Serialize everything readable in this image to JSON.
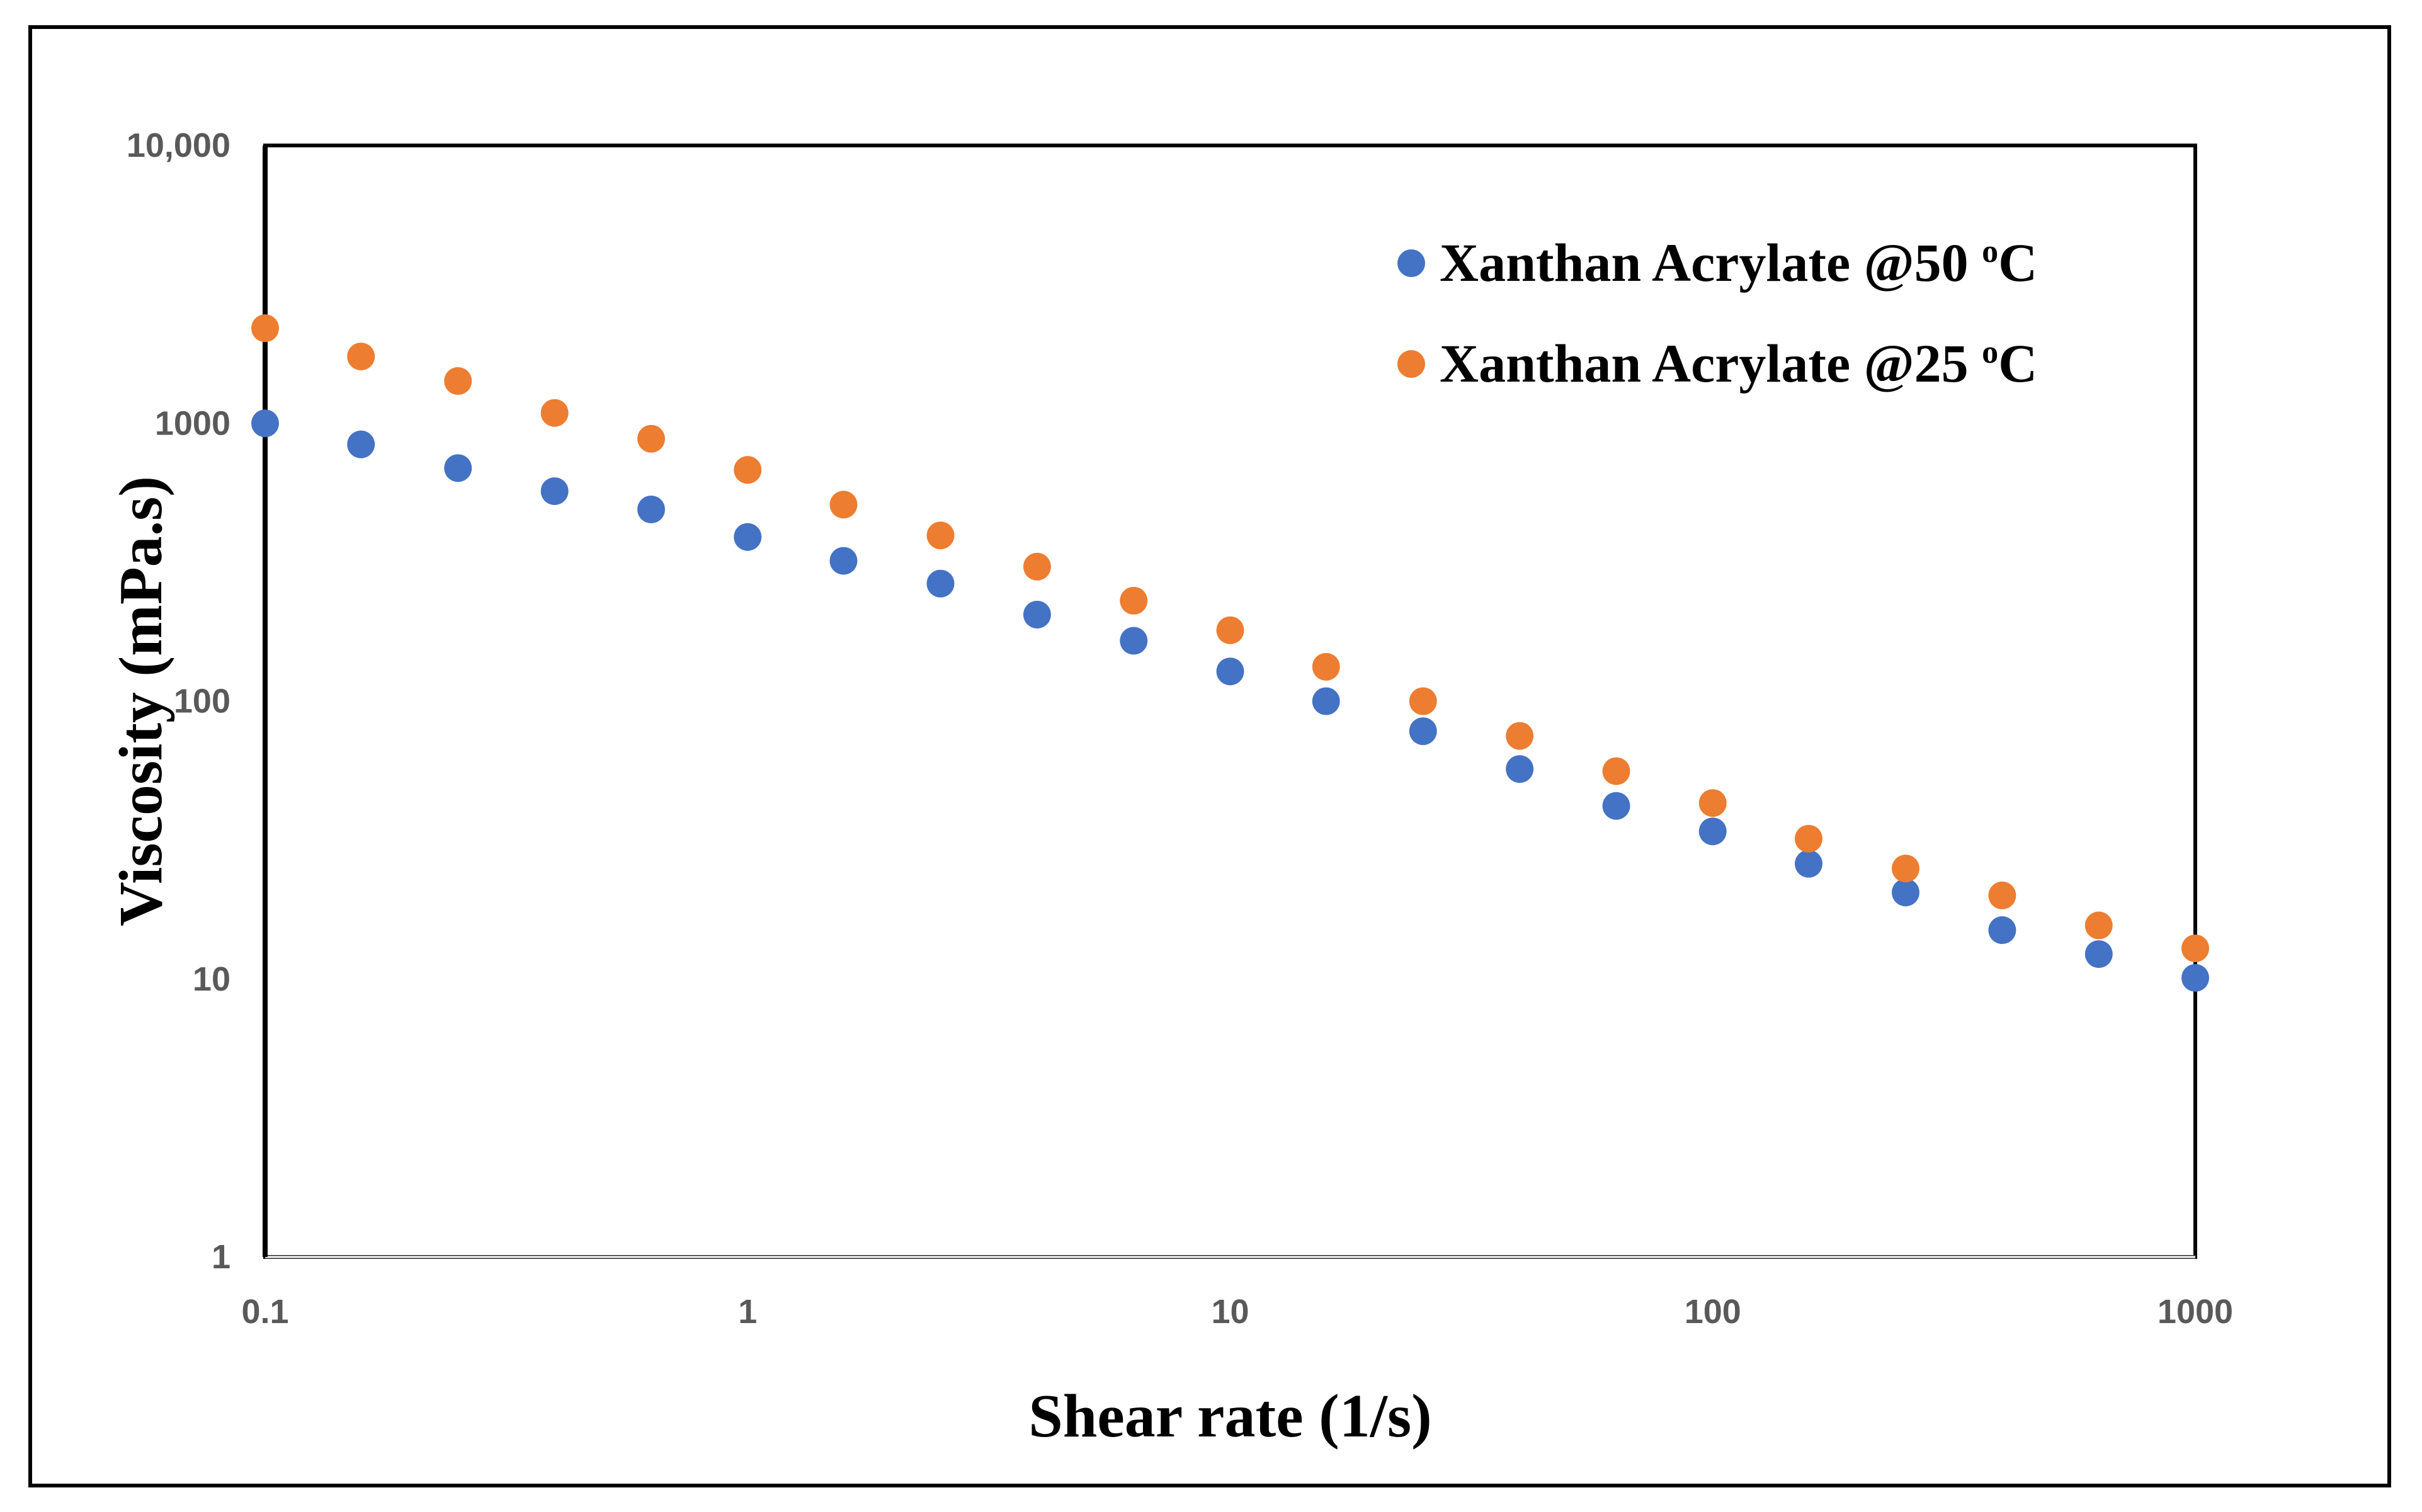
{
  "chart_data": {
    "type": "scatter",
    "title": "",
    "xlabel": "Shear rate (1/s)",
    "ylabel": "Viscosity (mPa.s)",
    "xscale": "log",
    "yscale": "log",
    "xlim": [
      0.1,
      1000
    ],
    "ylim": [
      1,
      10000
    ],
    "xticks": [
      "0.1",
      "1",
      "10",
      "100",
      "1000"
    ],
    "yticks": [
      "1",
      "10",
      "100",
      "1000",
      "10,000"
    ],
    "legend_position": "top-right",
    "grid": false,
    "series": [
      {
        "name": "Xanthan Acrylate @50",
        "superscript": "o",
        "unit": "C",
        "color": "#4472C4",
        "x": [
          0.1,
          0.158,
          0.251,
          0.398,
          0.631,
          1,
          1.58,
          2.51,
          3.98,
          6.31,
          10,
          15.8,
          25.1,
          39.8,
          63.1,
          100,
          158,
          251,
          398,
          631,
          1000
        ],
        "y": [
          1000,
          840,
          690,
          570,
          490,
          390,
          320,
          265,
          205,
          165,
          128,
          100,
          78,
          57,
          42,
          34,
          26,
          20.5,
          15,
          12.3,
          10.1
        ]
      },
      {
        "name": "Xanthan Acrylate @25",
        "superscript": "o",
        "unit": "C",
        "color": "#ED7D31",
        "x": [
          0.1,
          0.158,
          0.251,
          0.398,
          0.631,
          1,
          1.58,
          2.51,
          3.98,
          6.31,
          10,
          15.8,
          25.1,
          39.8,
          63.1,
          100,
          158,
          251,
          398,
          631,
          1000
        ],
        "y": [
          2200,
          1740,
          1420,
          1090,
          880,
          680,
          510,
          395,
          305,
          230,
          180,
          133,
          100,
          75,
          56,
          43,
          32,
          25,
          20,
          15.6,
          12.9
        ]
      }
    ]
  }
}
